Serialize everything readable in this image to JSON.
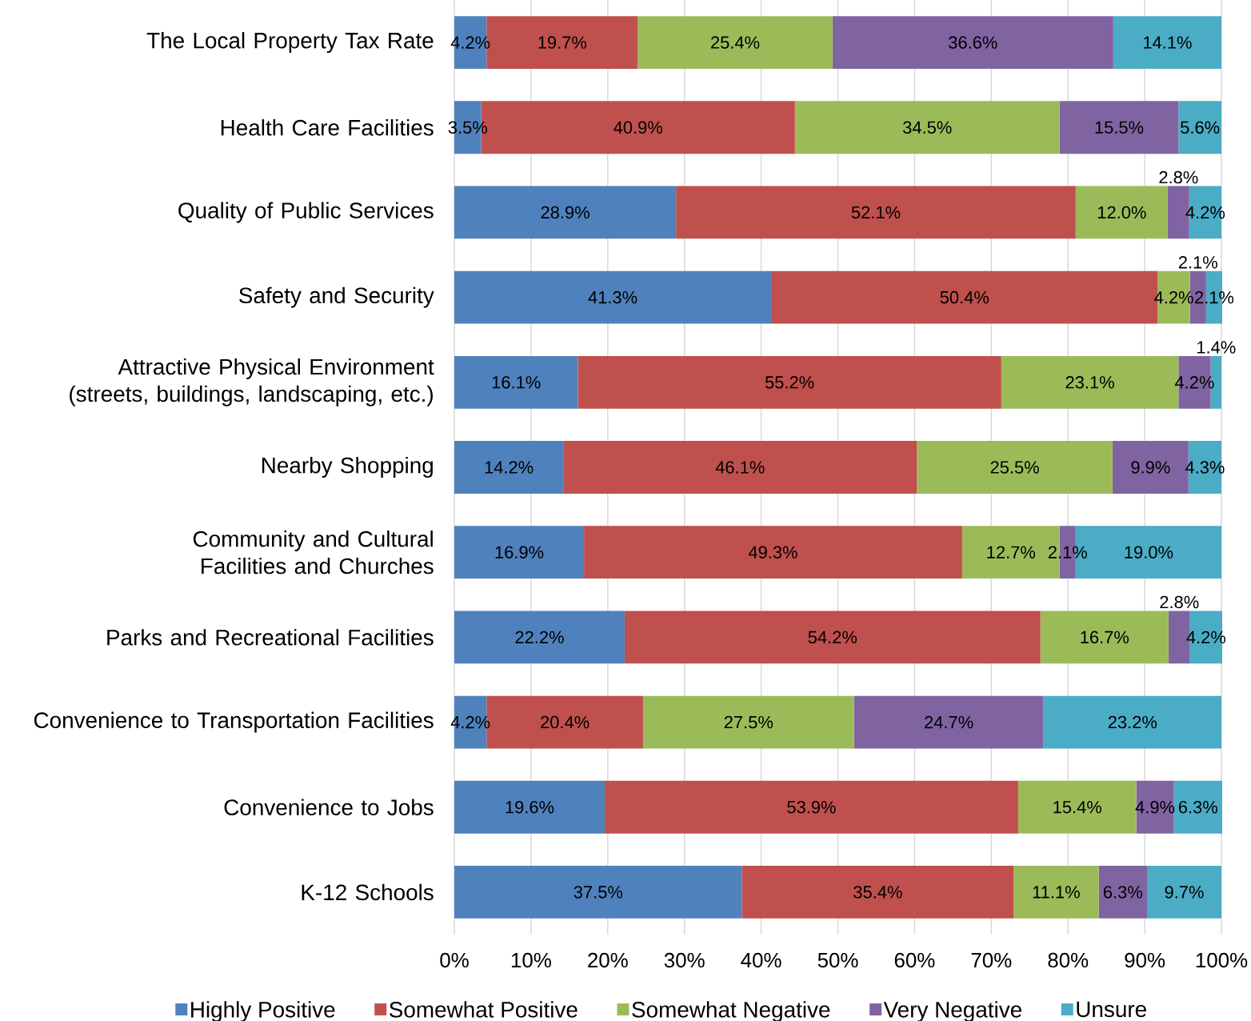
{
  "chart_data": {
    "type": "bar",
    "orientation": "horizontal",
    "stacked": true,
    "categories": [
      "The Local Property Tax Rate",
      "Health Care Facilities",
      "Quality of Public Services",
      "Safety and Security",
      "Attractive Physical Environment (streets, buildings, landscaping, etc.)",
      "Nearby Shopping",
      "Community and Cultural Facilities and Churches",
      "Parks and Recreational Facilities",
      "Convenience to Transportation Facilities",
      "Convenience to Jobs",
      "K-12 Schools"
    ],
    "series": [
      {
        "name": "Highly Positive",
        "color": "#4f81bd",
        "values": [
          4.2,
          3.5,
          28.9,
          41.3,
          16.1,
          14.2,
          16.9,
          22.2,
          4.2,
          19.6,
          37.5
        ],
        "value_labels": [
          "4.2%",
          "3.5%",
          "28.9%",
          "41.3%",
          "16.1%",
          "14.2%",
          "16.9%",
          "22.2%",
          "4.2%",
          "19.6%",
          "37.5%"
        ]
      },
      {
        "name": "Somewhat Positive",
        "color": "#c0504d",
        "values": [
          19.7,
          40.9,
          52.1,
          50.4,
          55.2,
          46.1,
          49.3,
          54.2,
          20.4,
          53.9,
          35.4
        ],
        "value_labels": [
          "19.7%",
          "40.9%",
          "52.1%",
          "50.4%",
          "55.2%",
          "46.1%",
          "49.3%",
          "54.2%",
          "20.4%",
          "53.9%",
          "35.4%"
        ]
      },
      {
        "name": "Somewhat Negative",
        "color": "#9bbb59",
        "values": [
          25.4,
          34.5,
          12.0,
          4.2,
          23.1,
          25.5,
          12.7,
          16.7,
          27.5,
          15.4,
          11.1
        ],
        "value_labels": [
          "25.4%",
          "34.5%",
          "12.0%",
          "4.2%",
          "23.1%",
          "25.5%",
          "12.7%",
          "16.7%",
          "27.5%",
          "15.4%",
          "11.1%"
        ]
      },
      {
        "name": "Very Negative",
        "color": "#8064a2",
        "values": [
          36.6,
          15.5,
          2.8,
          2.1,
          4.2,
          9.9,
          2.1,
          2.8,
          24.7,
          4.9,
          6.3
        ],
        "value_labels": [
          "36.6%",
          "15.5%",
          "2.8%",
          "2.1%",
          "4.2%",
          "9.9%",
          "2.1%",
          "2.8%",
          "24.7%",
          "4.9%",
          "6.3%"
        ]
      },
      {
        "name": "Unsure",
        "color": "#4bacc6",
        "values": [
          14.1,
          5.6,
          4.2,
          2.1,
          1.4,
          4.3,
          19.0,
          4.2,
          23.2,
          6.3,
          9.7
        ],
        "value_labels": [
          "14.1%",
          "5.6%",
          "4.2%",
          "2.1%",
          "1.4%",
          "4.3%",
          "19.0%",
          "4.2%",
          "23.2%",
          "6.3%",
          "9.7%"
        ]
      }
    ],
    "xlim": [
      0,
      100
    ],
    "xticks": [
      {
        "value": 0,
        "label": "0%"
      },
      {
        "value": 10,
        "label": "10%"
      },
      {
        "value": 20,
        "label": "20%"
      },
      {
        "value": 30,
        "label": "30%"
      },
      {
        "value": 40,
        "label": "40%"
      },
      {
        "value": 50,
        "label": "50%"
      },
      {
        "value": 60,
        "label": "60%"
      },
      {
        "value": 70,
        "label": "70%"
      },
      {
        "value": 80,
        "label": "80%"
      },
      {
        "value": 90,
        "label": "90%"
      },
      {
        "value": 100,
        "label": "100%"
      }
    ],
    "grid": "x",
    "legend": "bottom"
  }
}
